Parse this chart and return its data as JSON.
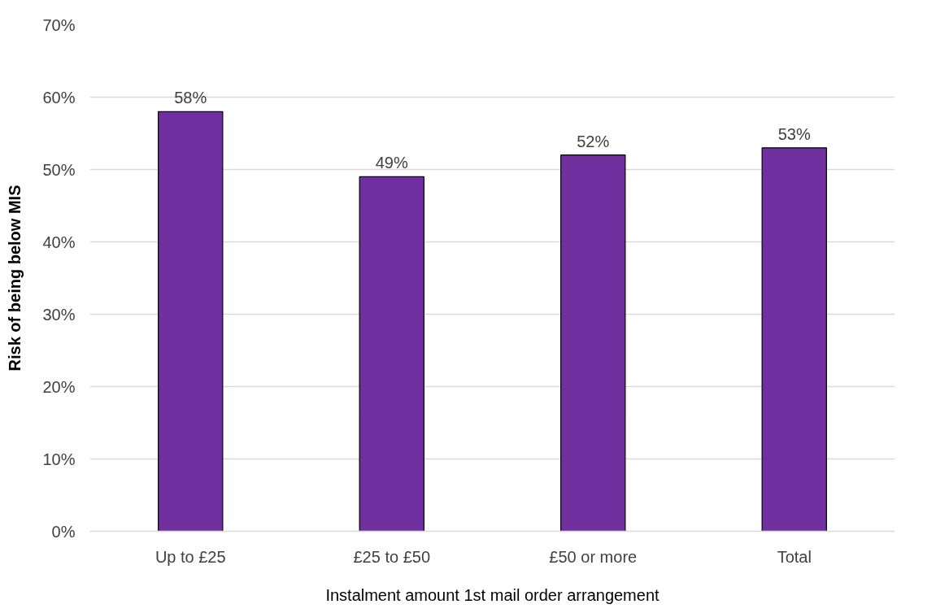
{
  "chart_data": {
    "type": "bar",
    "xlabel": "Instalment amount 1st mail order arrangement",
    "ylabel": "Risk of being below MIS",
    "categories": [
      "Up to £25",
      "£25 to £50",
      "£50 or more",
      "Total"
    ],
    "values": [
      58,
      49,
      52,
      53
    ],
    "value_labels": [
      "58%",
      "49%",
      "52%",
      "53%"
    ],
    "color": "#7030a0",
    "ylim": [
      0,
      70
    ],
    "yticks": [
      {
        "value": 0,
        "label": "0%"
      },
      {
        "value": 10,
        "label": "10%"
      },
      {
        "value": 20,
        "label": "20%"
      },
      {
        "value": 30,
        "label": "30%"
      },
      {
        "value": 40,
        "label": "40%"
      },
      {
        "value": 50,
        "label": "50%"
      },
      {
        "value": 60,
        "label": "60%"
      },
      {
        "value": 70,
        "label": "70%"
      }
    ],
    "grid": "y"
  }
}
